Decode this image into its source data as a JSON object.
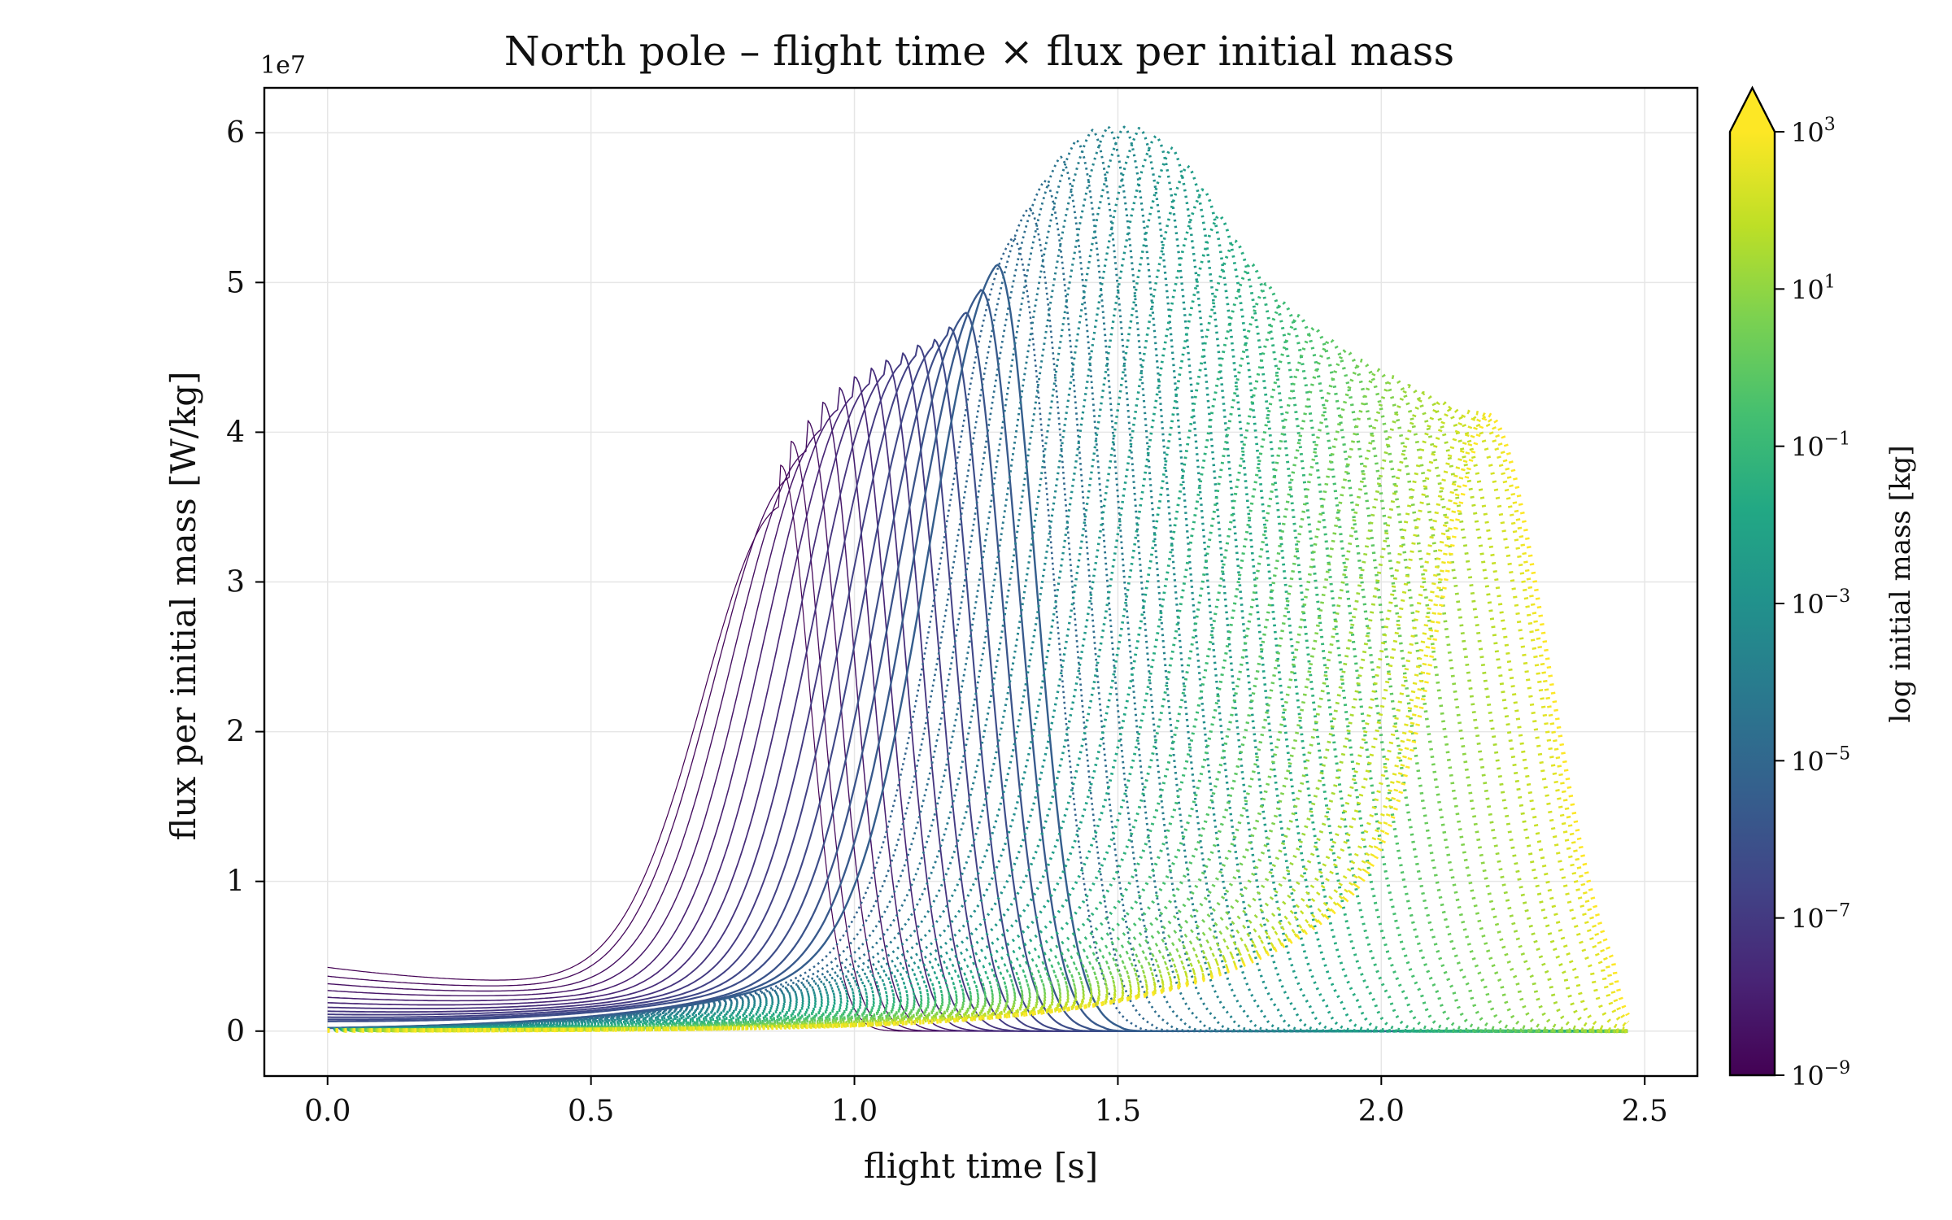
{
  "chart_data": {
    "type": "line",
    "title": "North pole – flight time × flux per initial mass",
    "xlabel": "flight time [s]",
    "ylabel": "flux per initial mass [W/kg]",
    "y_offset_label": "1e7",
    "xlim": [
      -0.12,
      2.6
    ],
    "ylim": [
      -0.3,
      6.3
    ],
    "y_scale_factor": 10000000,
    "xticks": [
      "0.0",
      "0.5",
      "1.0",
      "1.5",
      "2.0",
      "2.5"
    ],
    "yticks": [
      "0",
      "1",
      "2",
      "3",
      "4",
      "5",
      "6"
    ],
    "grid": true,
    "colormap": "viridis",
    "colorbar": {
      "label": "log initial mass [kg]",
      "scale": "log",
      "range": [
        1e-09,
        1000
      ],
      "extend": "max",
      "ticks": [
        {
          "base": "10",
          "exp": "−9"
        },
        {
          "base": "10",
          "exp": "−7"
        },
        {
          "base": "10",
          "exp": "−5"
        },
        {
          "base": "10",
          "exp": "−3"
        },
        {
          "base": "10",
          "exp": "−1"
        },
        {
          "base": "10",
          "exp": "1"
        },
        {
          "base": "10",
          "exp": "3"
        }
      ]
    },
    "series_family": {
      "count": 48,
      "description_of_envelope": "peak (flight time s, flux 1e7 W/kg) per curve, ordered from smallest to largest initial mass",
      "peaks": [
        [
          0.86,
          3.78
        ],
        [
          0.88,
          3.94
        ],
        [
          0.91,
          4.08
        ],
        [
          0.94,
          4.2
        ],
        [
          0.97,
          4.3
        ],
        [
          1.0,
          4.37
        ],
        [
          1.03,
          4.43
        ],
        [
          1.06,
          4.48
        ],
        [
          1.09,
          4.53
        ],
        [
          1.12,
          4.58
        ],
        [
          1.15,
          4.62
        ],
        [
          1.18,
          4.7
        ],
        [
          1.21,
          4.8
        ],
        [
          1.24,
          4.95
        ],
        [
          1.27,
          5.12
        ],
        [
          1.3,
          5.3
        ],
        [
          1.33,
          5.5
        ],
        [
          1.36,
          5.68
        ],
        [
          1.39,
          5.84
        ],
        [
          1.42,
          5.95
        ],
        [
          1.45,
          6.02
        ],
        [
          1.48,
          6.04
        ],
        [
          1.51,
          6.04
        ],
        [
          1.54,
          6.03
        ],
        [
          1.57,
          5.98
        ],
        [
          1.6,
          5.9
        ],
        [
          1.63,
          5.78
        ],
        [
          1.66,
          5.62
        ],
        [
          1.69,
          5.45
        ],
        [
          1.72,
          5.28
        ],
        [
          1.75,
          5.13
        ],
        [
          1.78,
          4.99
        ],
        [
          1.81,
          4.87
        ],
        [
          1.84,
          4.78
        ],
        [
          1.87,
          4.7
        ],
        [
          1.9,
          4.62
        ],
        [
          1.93,
          4.55
        ],
        [
          1.96,
          4.48
        ],
        [
          1.99,
          4.42
        ],
        [
          2.02,
          4.37
        ],
        [
          2.05,
          4.31
        ],
        [
          2.08,
          4.26
        ],
        [
          2.11,
          4.21
        ],
        [
          2.13,
          4.17
        ],
        [
          2.16,
          4.14
        ],
        [
          2.18,
          4.13
        ],
        [
          2.19,
          4.12
        ],
        [
          2.2,
          4.12
        ]
      ],
      "start_values": [
        0.4,
        0.34,
        0.29,
        0.245,
        0.2,
        0.165,
        0.135,
        0.11,
        0.09,
        0.072,
        0.058,
        0.046
      ],
      "x_end": 2.47
    }
  }
}
